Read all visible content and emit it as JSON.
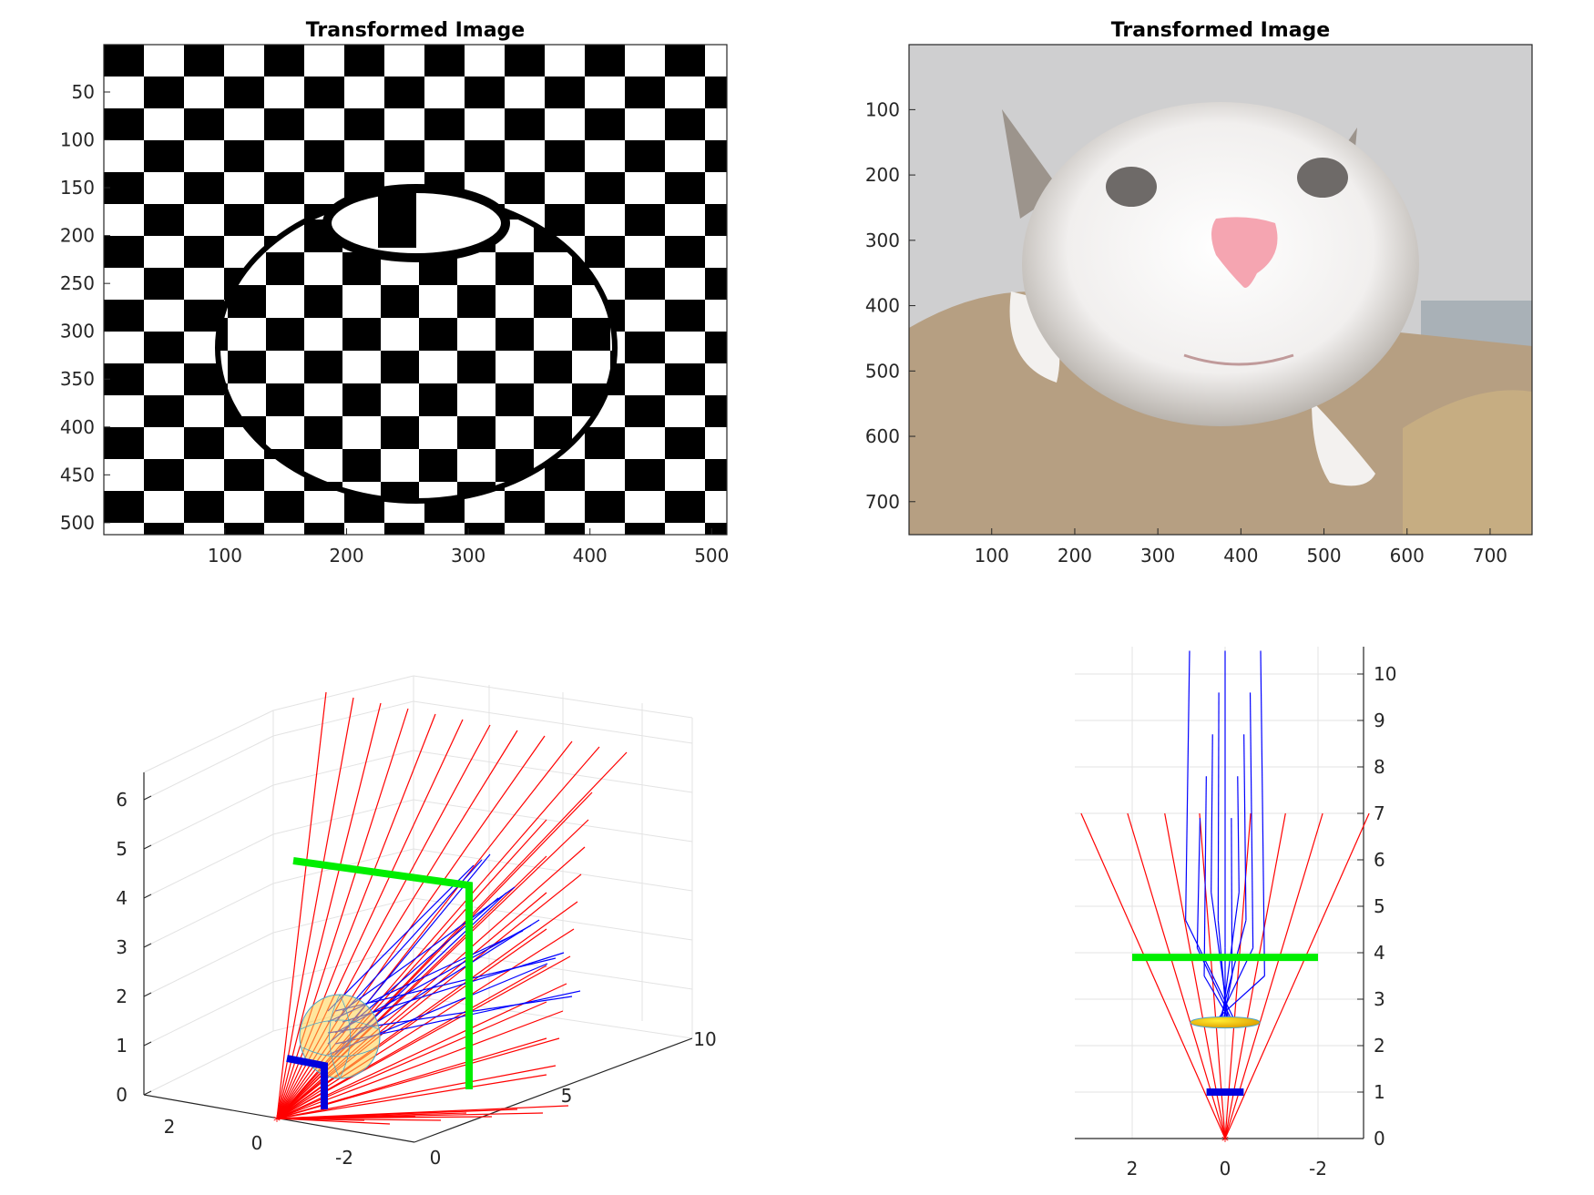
{
  "chart_data": [
    {
      "type": "image",
      "title": "Transformed Image",
      "content": "checkerboard distorted by a spherical lens",
      "xticks": [
        100,
        200,
        300,
        400,
        500
      ],
      "yticks": [
        50,
        100,
        150,
        200,
        250,
        300,
        350,
        400,
        450,
        500
      ],
      "xlim": [
        1,
        512
      ],
      "ylim": [
        1,
        512
      ]
    },
    {
      "type": "image",
      "title": "Transformed Image",
      "content": "photo of a white cat face magnified by a spherical lens",
      "xticks": [
        100,
        200,
        300,
        400,
        500,
        600,
        700
      ],
      "yticks": [
        100,
        200,
        300,
        400,
        500,
        600,
        700
      ],
      "xlim": [
        1,
        750
      ],
      "ylim": [
        1,
        750
      ]
    },
    {
      "type": "3d-line",
      "title": "",
      "zticks": [
        0,
        1,
        2,
        3,
        4,
        5,
        6
      ],
      "xticks": [
        0,
        5,
        10
      ],
      "yticks": [
        2,
        0,
        -2
      ],
      "grid": true,
      "series": [
        {
          "color": "#ff0000",
          "role": "rays from point source"
        },
        {
          "color": "#0000ff",
          "role": "refracted rays"
        },
        {
          "color": "#00ff00",
          "role": "image plane",
          "z": 4
        },
        {
          "color": "#0000ff",
          "role": "object plane",
          "z": 1
        },
        {
          "color": "#ffcc00",
          "role": "spherical lens",
          "center_z": 2.3
        }
      ]
    },
    {
      "type": "line",
      "title": "",
      "yticks": [
        0,
        1,
        2,
        3,
        4,
        5,
        6,
        7,
        8,
        9,
        10
      ],
      "xticks": [
        2,
        0,
        -2
      ],
      "ylim": [
        0,
        10.5
      ],
      "xlim": [
        3,
        -3
      ],
      "grid": true,
      "series": [
        {
          "color": "#ff0000",
          "role": "rays",
          "origin": [
            0,
            0
          ],
          "end_x_at_y7": [
            3.1,
            2.1,
            1.3,
            0.55,
            -0.55,
            -1.3,
            -2.1,
            -3.1
          ]
        },
        {
          "color": "#0000ff",
          "role": "refracted rays",
          "x": [
            -0.85,
            -0.6,
            -0.45,
            -0.3,
            -0.15,
            0,
            0.15,
            0.3,
            0.45,
            0.6,
            0.85
          ],
          "y_start": 3,
          "y_end": 10.5
        },
        {
          "color": "#00ff00",
          "role": "image plane",
          "x": [
            2,
            -2
          ],
          "y": [
            3.9,
            3.9
          ]
        },
        {
          "color": "#0000ff",
          "role": "object plane",
          "x": [
            0.4,
            -0.4
          ],
          "y": [
            1,
            1
          ]
        },
        {
          "color": "#ffcc00",
          "role": "lens",
          "center": [
            0,
            2.5
          ],
          "rx": 0.75,
          "ry": 0.12
        }
      ]
    }
  ]
}
